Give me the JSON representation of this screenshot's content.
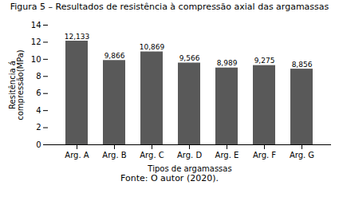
{
  "chart_data": {
    "type": "bar",
    "title": "Figura 5 – Resultados de resistência à compressão axial das argamassas",
    "caption": "Fonte: O autor (2020).",
    "xlabel": "Tipos de argamassas",
    "ylabel": "Resitência á\ncompressão(MPa)",
    "categories": [
      "Arg. A",
      "Arg. B",
      "Arg. C",
      "Arg. D",
      "Arg. E",
      "Arg. F",
      "Arg. G"
    ],
    "values": [
      12.133,
      9.866,
      10.869,
      9.566,
      8.989,
      9.275,
      8.856
    ],
    "value_labels": [
      "12,133",
      "9,866",
      "10,869",
      "9,566",
      "8,989",
      "9,275",
      "8,856"
    ],
    "data_labels": true,
    "color": "#595959",
    "ylim": [
      0,
      14
    ],
    "yticks": [
      0,
      2,
      4,
      6,
      8,
      10,
      12,
      14
    ],
    "grid": false
  }
}
